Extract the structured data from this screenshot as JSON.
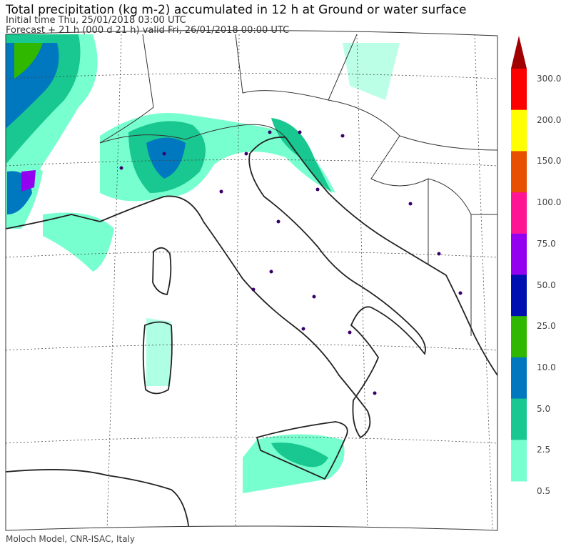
{
  "header": {
    "title": "Total precipitation (kg m-2) accumulated in  12 h at Ground or water surface",
    "initial_time": "Initial time  Thu, 25/01/2018  03:00 UTC",
    "forecast": "Forecast  +  21 h  (000 d 21 h)  valid Fri, 26/01/2018 00:00 UTC"
  },
  "footer": {
    "credit": "Moloch Model, CNR-ISAC, Italy"
  },
  "legend": {
    "labels": [
      "300.0",
      "200.0",
      "150.0",
      "100.0",
      "75.0",
      "50.0",
      "25.0",
      "10.0",
      "5.0",
      "2.5",
      "0.5"
    ],
    "colors": [
      "#ff0000",
      "#ffff00",
      "#e65000",
      "#ff1493",
      "#9400f0",
      "#0010b0",
      "#30b800",
      "#0078c0",
      "#18c890",
      "#78ffd0"
    ],
    "overflow_color": "#a00000"
  }
}
